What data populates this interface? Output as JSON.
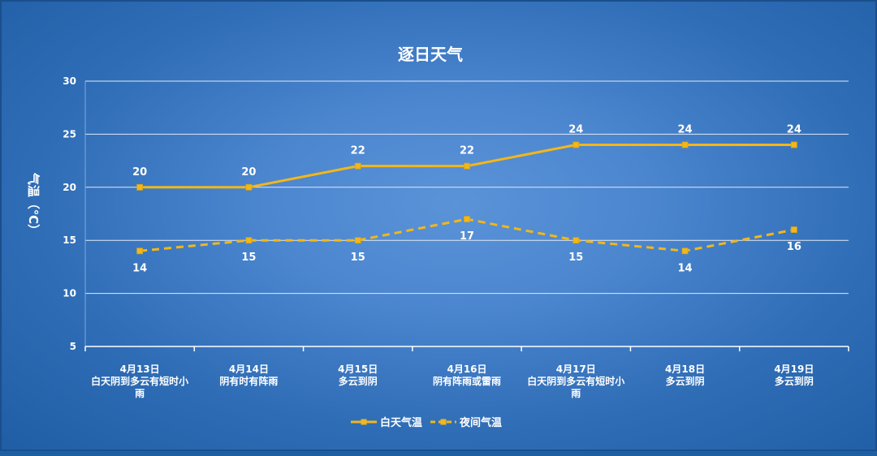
{
  "chart_data": {
    "type": "line",
    "title": "逐日天气",
    "ylabel": "气温（℃）",
    "xlabel": "",
    "ylim": [
      5,
      30
    ],
    "yticks": [
      "5",
      "10",
      "15",
      "20",
      "25",
      "30"
    ],
    "grid": true,
    "legend_position": "bottom",
    "categories": [
      [
        "4月13日",
        "白天阴到多云有短时小",
        "雨"
      ],
      [
        "4月14日",
        "阴有时有阵雨"
      ],
      [
        "4月15日",
        "多云到阴"
      ],
      [
        "4月16日",
        "阴有阵雨或雷雨"
      ],
      [
        "4月17日",
        "白天阴到多云有短时小",
        "雨"
      ],
      [
        "4月18日",
        "多云到阴"
      ],
      [
        "4月19日",
        "多云到阴"
      ]
    ],
    "series": [
      {
        "name": "白天气温",
        "values": [
          20,
          20,
          22,
          22,
          24,
          24,
          24
        ],
        "color": "#f2b71a",
        "dashed": false,
        "label_position": "above"
      },
      {
        "name": "夜间气温",
        "values": [
          14,
          15,
          15,
          17,
          15,
          14,
          16
        ],
        "color": "#f2b71a",
        "dashed": true,
        "label_position": "below"
      }
    ]
  }
}
